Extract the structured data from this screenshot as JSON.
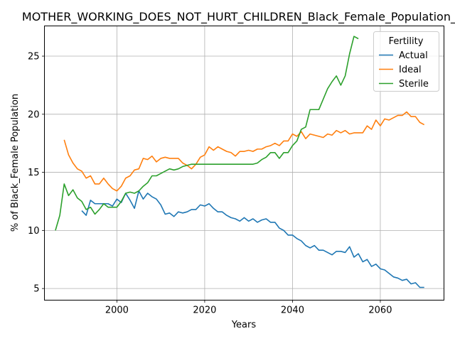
{
  "chart_data": {
    "type": "line",
    "title": "MOTHER_WORKING_DOES_NOT_HURT_CHILDREN_Black_Female_Population_sc",
    "xlabel": "Years",
    "ylabel": "% of Black_Female Population",
    "xlim": [
      1983.5,
      2074.5
    ],
    "ylim": [
      4.0,
      27.6
    ],
    "xticks": [
      2000,
      2020,
      2040,
      2060
    ],
    "yticks": [
      5,
      10,
      15,
      20,
      25
    ],
    "grid": true,
    "legend": {
      "title": "Fertility",
      "position": "top-right"
    },
    "series": [
      {
        "name": "Actual",
        "color": "#1f77b4",
        "points": [
          [
            1992,
            11.7
          ],
          [
            1993,
            11.3
          ],
          [
            1994,
            12.6
          ],
          [
            1995,
            12.3
          ],
          [
            1996,
            12.3
          ],
          [
            1997,
            12.3
          ],
          [
            1998,
            12.3
          ],
          [
            1999,
            12.1
          ],
          [
            2000,
            12.7
          ],
          [
            2001,
            12.4
          ],
          [
            2002,
            13.2
          ],
          [
            2003,
            12.6
          ],
          [
            2004,
            11.9
          ],
          [
            2005,
            13.4
          ],
          [
            2006,
            12.7
          ],
          [
            2007,
            13.2
          ],
          [
            2008,
            12.9
          ],
          [
            2009,
            12.7
          ],
          [
            2010,
            12.2
          ],
          [
            2011,
            11.4
          ],
          [
            2012,
            11.5
          ],
          [
            2013,
            11.2
          ],
          [
            2014,
            11.6
          ],
          [
            2015,
            11.5
          ],
          [
            2016,
            11.6
          ],
          [
            2017,
            11.8
          ],
          [
            2018,
            11.8
          ],
          [
            2019,
            12.2
          ],
          [
            2020,
            12.1
          ],
          [
            2021,
            12.3
          ],
          [
            2022,
            11.9
          ],
          [
            2023,
            11.6
          ],
          [
            2024,
            11.6
          ],
          [
            2025,
            11.3
          ],
          [
            2026,
            11.1
          ],
          [
            2027,
            11.0
          ],
          [
            2028,
            10.8
          ],
          [
            2029,
            11.1
          ],
          [
            2030,
            10.8
          ],
          [
            2031,
            11.0
          ],
          [
            2032,
            10.7
          ],
          [
            2033,
            10.9
          ],
          [
            2034,
            11.0
          ],
          [
            2035,
            10.7
          ],
          [
            2036,
            10.7
          ],
          [
            2037,
            10.2
          ],
          [
            2038,
            10.0
          ],
          [
            2039,
            9.6
          ],
          [
            2040,
            9.6
          ],
          [
            2041,
            9.3
          ],
          [
            2042,
            9.1
          ],
          [
            2043,
            8.7
          ],
          [
            2044,
            8.5
          ],
          [
            2045,
            8.7
          ],
          [
            2046,
            8.3
          ],
          [
            2047,
            8.3
          ],
          [
            2048,
            8.1
          ],
          [
            2049,
            7.9
          ],
          [
            2050,
            8.2
          ],
          [
            2051,
            8.2
          ],
          [
            2052,
            8.1
          ],
          [
            2053,
            8.6
          ],
          [
            2054,
            7.7
          ],
          [
            2055,
            8.0
          ],
          [
            2056,
            7.3
          ],
          [
            2057,
            7.5
          ],
          [
            2058,
            6.9
          ],
          [
            2059,
            7.1
          ],
          [
            2060,
            6.7
          ],
          [
            2061,
            6.6
          ],
          [
            2062,
            6.3
          ],
          [
            2063,
            6.0
          ],
          [
            2064,
            5.9
          ],
          [
            2065,
            5.7
          ],
          [
            2066,
            5.8
          ],
          [
            2067,
            5.4
          ],
          [
            2068,
            5.5
          ],
          [
            2069,
            5.1
          ],
          [
            2070,
            5.1
          ]
        ]
      },
      {
        "name": "Ideal",
        "color": "#ff7f0e",
        "points": [
          [
            1988,
            17.8
          ],
          [
            1989,
            16.5
          ],
          [
            1990,
            15.8
          ],
          [
            1991,
            15.3
          ],
          [
            1992,
            15.1
          ],
          [
            1993,
            14.5
          ],
          [
            1994,
            14.7
          ],
          [
            1995,
            14.0
          ],
          [
            1996,
            14.0
          ],
          [
            1997,
            14.5
          ],
          [
            1998,
            14.0
          ],
          [
            1999,
            13.6
          ],
          [
            2000,
            13.4
          ],
          [
            2001,
            13.8
          ],
          [
            2002,
            14.5
          ],
          [
            2003,
            14.7
          ],
          [
            2004,
            15.2
          ],
          [
            2005,
            15.3
          ],
          [
            2006,
            16.2
          ],
          [
            2007,
            16.1
          ],
          [
            2008,
            16.4
          ],
          [
            2009,
            15.9
          ],
          [
            2010,
            16.2
          ],
          [
            2011,
            16.3
          ],
          [
            2012,
            16.2
          ],
          [
            2013,
            16.2
          ],
          [
            2014,
            16.2
          ],
          [
            2015,
            15.8
          ],
          [
            2016,
            15.6
          ],
          [
            2017,
            15.3
          ],
          [
            2018,
            15.7
          ],
          [
            2019,
            16.3
          ],
          [
            2020,
            16.5
          ],
          [
            2021,
            17.2
          ],
          [
            2022,
            16.9
          ],
          [
            2023,
            17.2
          ],
          [
            2024,
            17.0
          ],
          [
            2025,
            16.8
          ],
          [
            2026,
            16.7
          ],
          [
            2027,
            16.4
          ],
          [
            2028,
            16.8
          ],
          [
            2029,
            16.8
          ],
          [
            2030,
            16.9
          ],
          [
            2031,
            16.8
          ],
          [
            2032,
            17.0
          ],
          [
            2033,
            17.0
          ],
          [
            2034,
            17.2
          ],
          [
            2035,
            17.3
          ],
          [
            2036,
            17.5
          ],
          [
            2037,
            17.3
          ],
          [
            2038,
            17.7
          ],
          [
            2039,
            17.7
          ],
          [
            2040,
            18.3
          ],
          [
            2041,
            18.1
          ],
          [
            2042,
            18.5
          ],
          [
            2043,
            17.9
          ],
          [
            2044,
            18.3
          ],
          [
            2045,
            18.2
          ],
          [
            2046,
            18.1
          ],
          [
            2047,
            18.0
          ],
          [
            2048,
            18.3
          ],
          [
            2049,
            18.2
          ],
          [
            2050,
            18.6
          ],
          [
            2051,
            18.4
          ],
          [
            2052,
            18.6
          ],
          [
            2053,
            18.3
          ],
          [
            2054,
            18.4
          ],
          [
            2055,
            18.4
          ],
          [
            2056,
            18.4
          ],
          [
            2057,
            19.0
          ],
          [
            2058,
            18.7
          ],
          [
            2059,
            19.5
          ],
          [
            2060,
            19.0
          ],
          [
            2061,
            19.6
          ],
          [
            2062,
            19.5
          ],
          [
            2063,
            19.7
          ],
          [
            2064,
            19.9
          ],
          [
            2065,
            19.9
          ],
          [
            2066,
            20.2
          ],
          [
            2067,
            19.8
          ],
          [
            2068,
            19.8
          ],
          [
            2069,
            19.3
          ],
          [
            2070,
            19.1
          ]
        ]
      },
      {
        "name": "Sterile",
        "color": "#2ca02c",
        "points": [
          [
            1986,
            10.0
          ],
          [
            1987,
            11.3
          ],
          [
            1988,
            14.0
          ],
          [
            1989,
            13.0
          ],
          [
            1990,
            13.5
          ],
          [
            1991,
            12.8
          ],
          [
            1992,
            12.5
          ],
          [
            1993,
            11.8
          ],
          [
            1994,
            12.0
          ],
          [
            1995,
            11.4
          ],
          [
            1996,
            11.8
          ],
          [
            1997,
            12.3
          ],
          [
            1998,
            12.0
          ],
          [
            1999,
            12.0
          ],
          [
            2000,
            12.0
          ],
          [
            2001,
            12.5
          ],
          [
            2002,
            13.2
          ],
          [
            2003,
            13.3
          ],
          [
            2004,
            13.2
          ],
          [
            2005,
            13.4
          ],
          [
            2006,
            13.8
          ],
          [
            2007,
            14.1
          ],
          [
            2008,
            14.7
          ],
          [
            2009,
            14.7
          ],
          [
            2010,
            14.9
          ],
          [
            2011,
            15.1
          ],
          [
            2012,
            15.3
          ],
          [
            2013,
            15.2
          ],
          [
            2014,
            15.3
          ],
          [
            2015,
            15.5
          ],
          [
            2016,
            15.6
          ],
          [
            2017,
            15.7
          ],
          [
            2018,
            15.7
          ],
          [
            2019,
            15.7
          ],
          [
            2020,
            15.7
          ],
          [
            2021,
            15.7
          ],
          [
            2022,
            15.7
          ],
          [
            2023,
            15.7
          ],
          [
            2024,
            15.7
          ],
          [
            2025,
            15.7
          ],
          [
            2026,
            15.7
          ],
          [
            2027,
            15.7
          ],
          [
            2028,
            15.7
          ],
          [
            2029,
            15.7
          ],
          [
            2030,
            15.7
          ],
          [
            2031,
            15.7
          ],
          [
            2032,
            15.8
          ],
          [
            2033,
            16.1
          ],
          [
            2034,
            16.3
          ],
          [
            2035,
            16.7
          ],
          [
            2036,
            16.7
          ],
          [
            2037,
            16.2
          ],
          [
            2038,
            16.7
          ],
          [
            2039,
            16.7
          ],
          [
            2040,
            17.3
          ],
          [
            2041,
            17.7
          ],
          [
            2042,
            18.7
          ],
          [
            2043,
            18.9
          ],
          [
            2044,
            20.4
          ],
          [
            2045,
            20.4
          ],
          [
            2046,
            20.4
          ],
          [
            2047,
            21.3
          ],
          [
            2048,
            22.2
          ],
          [
            2049,
            22.8
          ],
          [
            2050,
            23.3
          ],
          [
            2051,
            22.5
          ],
          [
            2052,
            23.3
          ],
          [
            2053,
            25.2
          ],
          [
            2054,
            26.7
          ],
          [
            2055,
            26.5
          ]
        ]
      }
    ]
  }
}
